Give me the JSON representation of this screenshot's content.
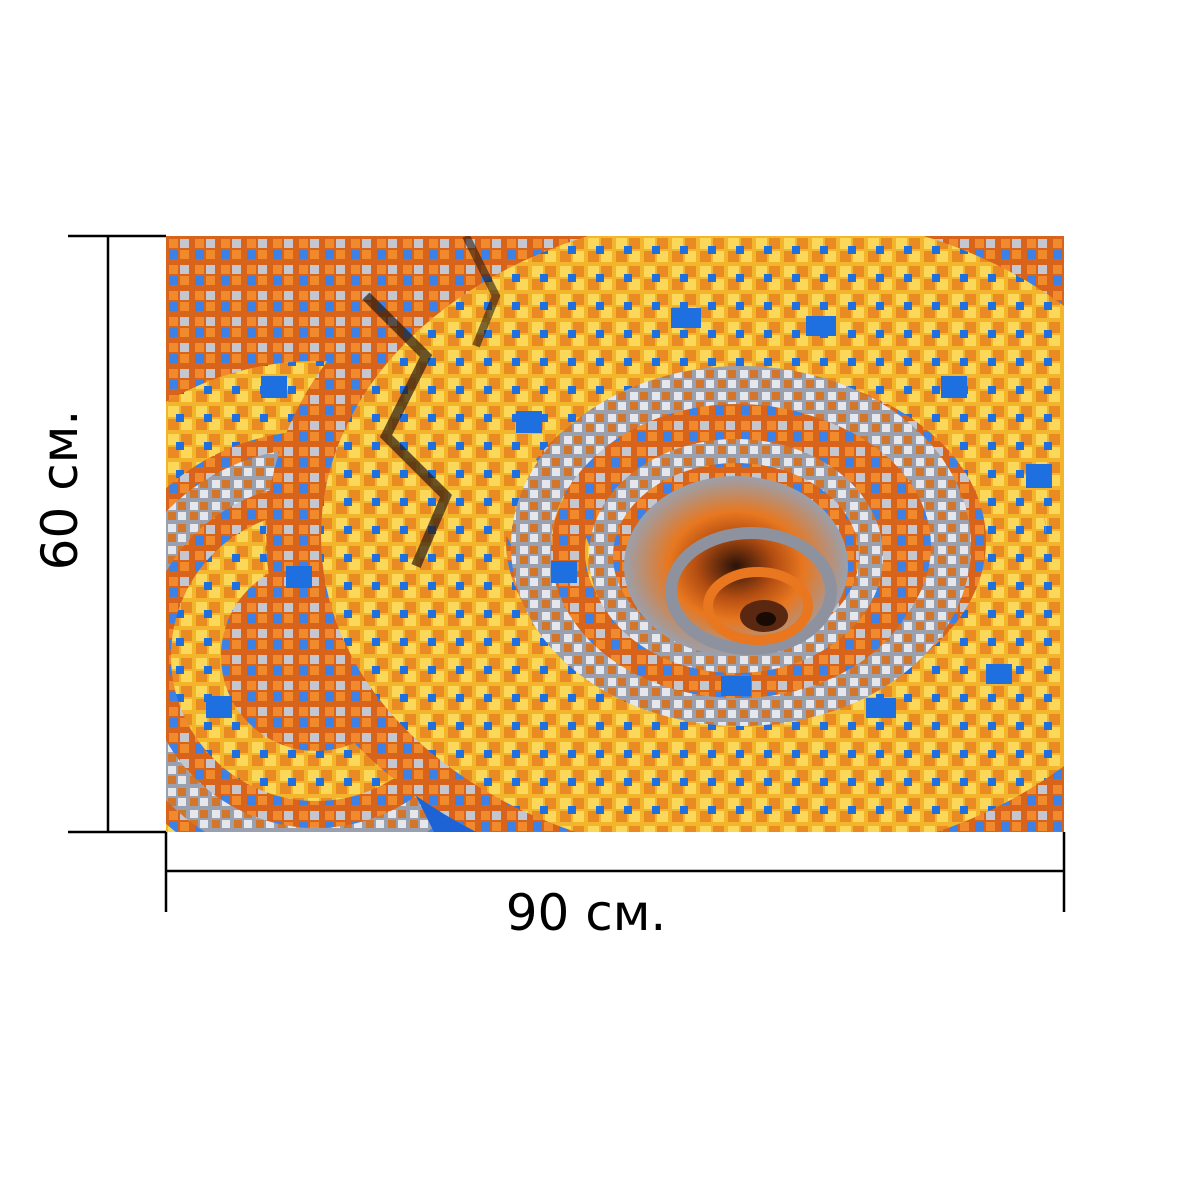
{
  "product": {
    "width_label": "90 см.",
    "height_label": "60 см.",
    "image_icon": "fractal-spiral-artwork"
  },
  "colors": {
    "orange": "#e8771f",
    "yellow": "#f6c83a",
    "blue": "#1e6fe0",
    "grey": "#c9ccd3",
    "dark": "#2a1a10",
    "line": "#000000"
  }
}
